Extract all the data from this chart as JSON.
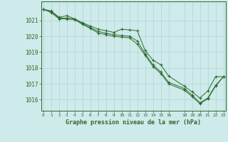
{
  "title": "Graphe pression niveau de la mer (hPa)",
  "background_color": "#ceeaea",
  "grid_color": "#b8d8d8",
  "line_color": "#2d6a2d",
  "marker_color": "#2d6a2d",
  "xlim": [
    -0.3,
    23.3
  ],
  "ylim": [
    1015.3,
    1022.2
  ],
  "xticks": [
    0,
    1,
    2,
    3,
    4,
    5,
    6,
    7,
    8,
    9,
    10,
    11,
    12,
    13,
    14,
    15,
    16,
    18,
    19,
    20,
    21,
    22,
    23
  ],
  "yticks": [
    1016,
    1017,
    1018,
    1019,
    1020,
    1021
  ],
  "series1": {
    "x": [
      0,
      1,
      2,
      3,
      4,
      5,
      6,
      7,
      8,
      9,
      10,
      11,
      12,
      13,
      14,
      15,
      16,
      18,
      19,
      20,
      21,
      22,
      23
    ],
    "y": [
      1021.7,
      1021.6,
      1021.2,
      1021.3,
      1021.1,
      1020.85,
      1020.65,
      1020.45,
      1020.35,
      1020.25,
      1020.45,
      1020.4,
      1020.35,
      1019.1,
      1018.5,
      1018.2,
      1017.5,
      1016.85,
      1016.5,
      1016.1,
      1016.55,
      1017.45,
      1017.45
    ]
  },
  "series2": {
    "x": [
      0,
      1,
      2,
      3,
      4,
      5,
      6,
      7,
      8,
      9,
      10,
      11,
      12,
      13,
      14,
      15,
      16,
      18,
      19,
      20,
      21,
      22,
      23
    ],
    "y": [
      1021.7,
      1021.5,
      1021.1,
      1021.1,
      1021.05,
      1020.75,
      1020.5,
      1020.2,
      1020.1,
      1020.0,
      1019.95,
      1019.9,
      1019.5,
      1018.8,
      1018.1,
      1017.65,
      1017.0,
      1016.6,
      1016.2,
      1015.75,
      1016.05,
      1016.85,
      1017.45
    ]
  },
  "series3": {
    "x": [
      0,
      1,
      2,
      3,
      4,
      5,
      6,
      7,
      8,
      9,
      10,
      11,
      12,
      13,
      14,
      15,
      16,
      18,
      19,
      20,
      21,
      22,
      23
    ],
    "y": [
      1021.7,
      1021.55,
      1021.15,
      1021.15,
      1021.08,
      1020.8,
      1020.55,
      1020.3,
      1020.2,
      1020.1,
      1020.05,
      1020.0,
      1019.7,
      1018.9,
      1018.2,
      1017.75,
      1017.1,
      1016.7,
      1016.3,
      1015.8,
      1016.1,
      1016.9,
      1017.45
    ]
  }
}
